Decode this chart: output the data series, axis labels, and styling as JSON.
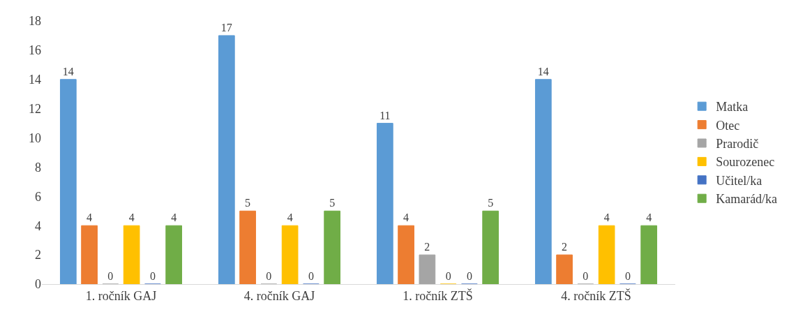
{
  "chart_data": {
    "type": "bar",
    "categories": [
      "1. ročník GAJ",
      "4. ročník GAJ",
      "1. ročník ZTŠ",
      "4. ročník ZTŠ"
    ],
    "series": [
      {
        "name": "Matka",
        "color": "#5b9bd5",
        "values": [
          14,
          17,
          11,
          14
        ]
      },
      {
        "name": "Otec",
        "color": "#ed7d31",
        "values": [
          4,
          5,
          4,
          2
        ]
      },
      {
        "name": "Prarodič",
        "color": "#a5a5a5",
        "values": [
          0,
          0,
          2,
          0
        ]
      },
      {
        "name": "Sourozenec",
        "color": "#ffc000",
        "values": [
          4,
          4,
          0,
          4
        ]
      },
      {
        "name": "Učitel/ka",
        "color": "#4472c4",
        "values": [
          0,
          0,
          0,
          0
        ]
      },
      {
        "name": "Kamarád/ka",
        "color": "#70ad47",
        "values": [
          4,
          5,
          5,
          4
        ]
      }
    ],
    "ylim": [
      0,
      18
    ],
    "yticks": [
      0,
      2,
      4,
      6,
      8,
      10,
      12,
      14,
      16,
      18
    ],
    "grid": false,
    "legend": "right",
    "data_labels": true
  }
}
